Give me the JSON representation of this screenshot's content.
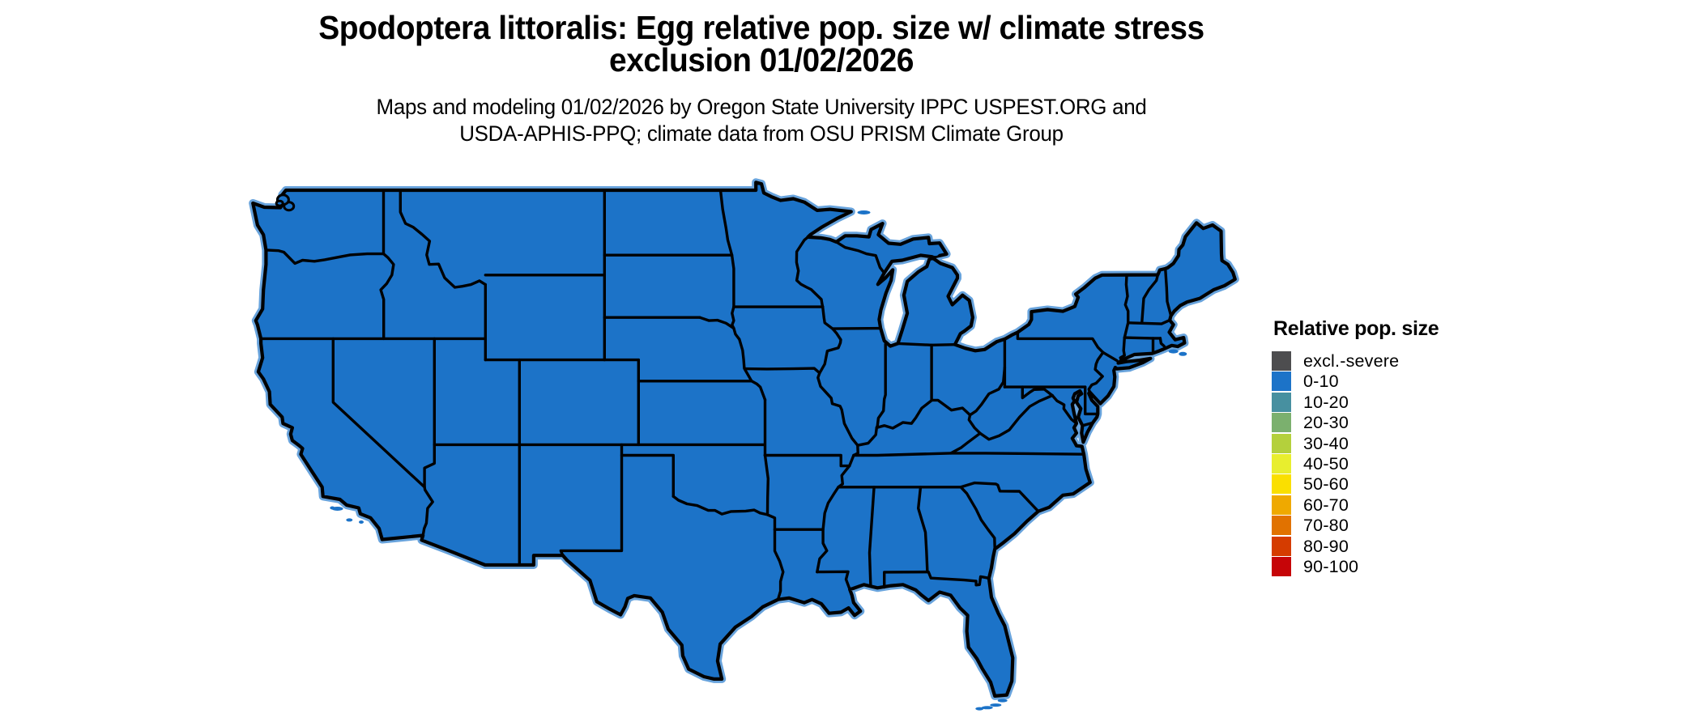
{
  "title": {
    "line1": "Spodoptera littoralis: Egg relative pop. size w/ climate stress",
    "line2": "exclusion 01/02/2026"
  },
  "subtitle": {
    "line1": "Maps and modeling 01/02/2026 by Oregon State University IPPC USPEST.ORG and",
    "line2": "USDA-APHIS-PPQ; climate data from OSU PRISM Climate Group"
  },
  "legend": {
    "title": "Relative pop. size",
    "items": [
      {
        "label": "excl.-severe",
        "color": "#4d4d4f"
      },
      {
        "label": "0-10",
        "color": "#1c73c8"
      },
      {
        "label": "10-20",
        "color": "#4790a0"
      },
      {
        "label": "20-30",
        "color": "#7bb06e"
      },
      {
        "label": "30-40",
        "color": "#b4d03c"
      },
      {
        "label": "40-50",
        "color": "#e8ee2e"
      },
      {
        "label": "50-60",
        "color": "#fadf00"
      },
      {
        "label": "60-70",
        "color": "#efa900"
      },
      {
        "label": "70-80",
        "color": "#e17200"
      },
      {
        "label": "80-90",
        "color": "#d53c00"
      },
      {
        "label": "90-100",
        "color": "#c60508"
      }
    ]
  },
  "map": {
    "land_fill": "#1c73c8",
    "border_color": "#000000",
    "coastal_halo": "#4e93d6",
    "background": "#ffffff"
  }
}
